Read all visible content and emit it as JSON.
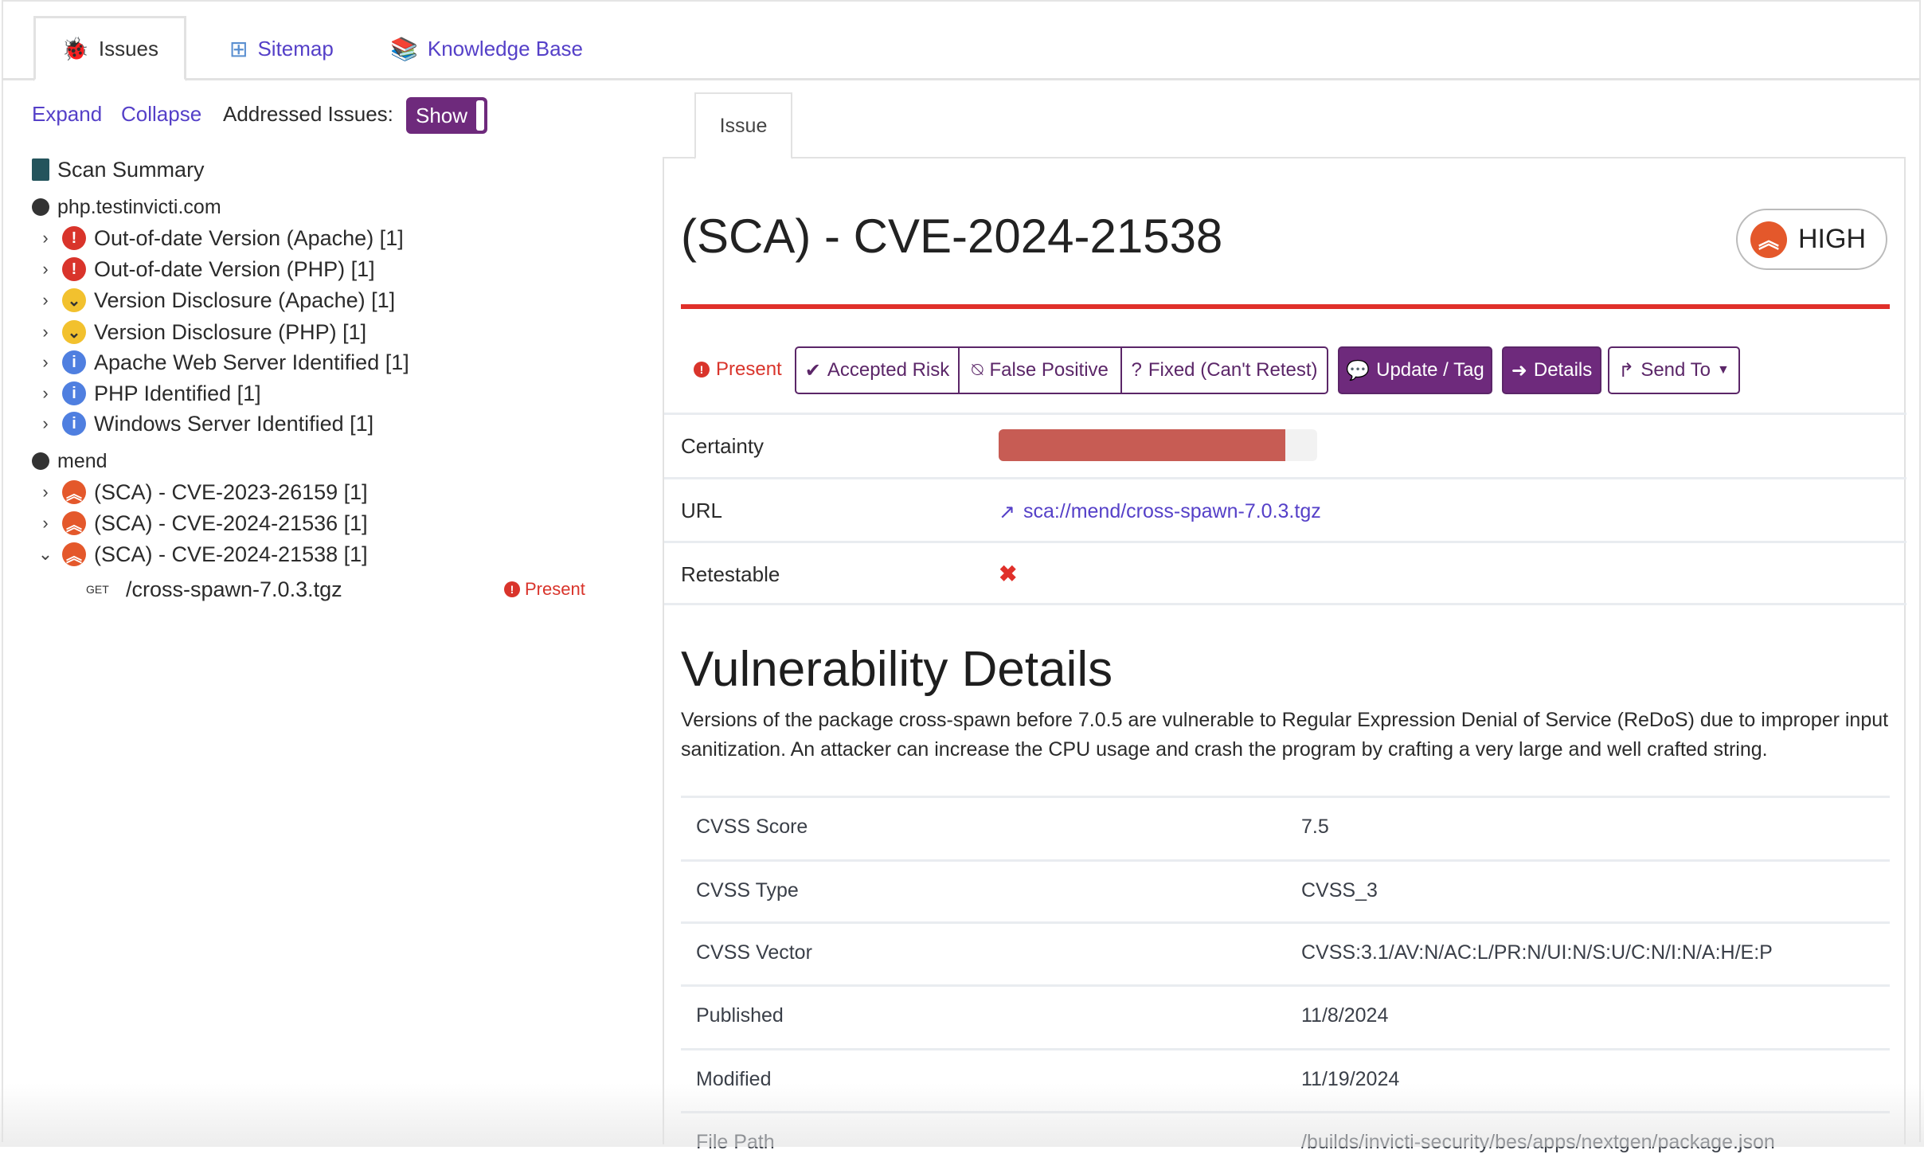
{
  "tabs": [
    {
      "label": "Issues",
      "icon": "bug-icon"
    },
    {
      "label": "Sitemap",
      "icon": "sitemap-icon"
    },
    {
      "label": "Knowledge Base",
      "icon": "books-icon"
    }
  ],
  "toolbar": {
    "expand": "Expand",
    "collapse": "Collapse",
    "addressed_label": "Addressed Issues:",
    "toggle": "Show"
  },
  "tree": {
    "summary": "Scan Summary",
    "hosts": [
      {
        "name": "php.testinvicti.com",
        "items": [
          {
            "label": "Out-of-date Version (Apache) [1]",
            "severity": "critical"
          },
          {
            "label": "Out-of-date Version (PHP) [1]",
            "severity": "critical"
          },
          {
            "label": "Version Disclosure (Apache) [1]",
            "severity": "medium"
          },
          {
            "label": "Version Disclosure (PHP) [1]",
            "severity": "medium"
          },
          {
            "label": "Apache Web Server Identified [1]",
            "severity": "info"
          },
          {
            "label": "PHP Identified [1]",
            "severity": "info"
          },
          {
            "label": "Windows Server Identified [1]",
            "severity": "info"
          }
        ]
      },
      {
        "name": "mend",
        "items": [
          {
            "label": "(SCA) - CVE-2023-26159 [1]",
            "severity": "high"
          },
          {
            "label": "(SCA) - CVE-2024-21536 [1]",
            "severity": "high"
          },
          {
            "label": "(SCA) - CVE-2024-21538 [1]",
            "severity": "high",
            "expanded": true
          }
        ]
      }
    ],
    "child": {
      "method": "GET",
      "path": "/cross-spawn-7.0.3.tgz",
      "status": "Present"
    }
  },
  "issue": {
    "tab": "Issue",
    "title": "(SCA) - CVE-2024-21538",
    "severity": "HIGH",
    "status": "Present",
    "actions": {
      "accepted_risk": "Accepted Risk",
      "false_positive": "False Positive",
      "fixed": "Fixed (Can't Retest)",
      "update_tag": "Update / Tag",
      "details": "Details",
      "send_to": "Send To"
    },
    "certainty_label": "Certainty",
    "certainty_percent": 90,
    "url_label": "URL",
    "url": "sca://mend/cross-spawn-7.0.3.tgz",
    "retestable_label": "Retestable",
    "retestable": false,
    "vuln_heading": "Vulnerability Details",
    "description": "Versions of the package cross-spawn before 7.0.5 are vulnerable to Regular Expression Denial of Service (ReDoS) due to improper input sanitization. An attacker can increase the CPU usage and crash the program by crafting a very large and well crafted string.",
    "details": [
      {
        "label": "CVSS Score",
        "value": "7.5"
      },
      {
        "label": "CVSS Type",
        "value": "CVSS_3"
      },
      {
        "label": "CVSS Vector",
        "value": "CVSS:3.1/AV:N/AC:L/PR:N/UI:N/S:U/C:N/I:N/A:H/E:P"
      },
      {
        "label": "Published",
        "value": "11/8/2024"
      },
      {
        "label": "Modified",
        "value": "11/19/2024"
      },
      {
        "label": "File Path",
        "value": "/builds/invicti-security/bes/apps/nextgen/package.json"
      }
    ]
  },
  "colors": {
    "accent": "#6e2a7c",
    "link": "#5540c8",
    "high": "#e4582b",
    "critical": "#d9342b",
    "certainty_fill": "#c75c54"
  }
}
